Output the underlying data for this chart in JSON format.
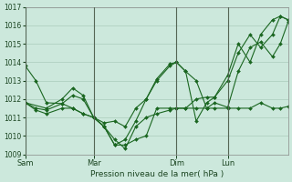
{
  "background_color": "#cce8dc",
  "grid_color": "#aaccbc",
  "line_color": "#1a6620",
  "marker_color": "#1a6620",
  "xlabel": "Pression niveau de la mer( hPa )",
  "ylim": [
    1009,
    1017
  ],
  "yticks": [
    1009,
    1010,
    1011,
    1012,
    1013,
    1014,
    1015,
    1016,
    1017
  ],
  "xtick_labels": [
    "Sam",
    "Mar",
    "Dim",
    "Lun"
  ],
  "xtick_positions": [
    0.0,
    0.26,
    0.575,
    0.77
  ],
  "vline_positions": [
    0.0,
    0.26,
    0.575,
    0.77
  ],
  "series": [
    {
      "x": [
        0.0,
        0.04,
        0.08,
        0.14,
        0.18,
        0.22,
        0.26,
        0.3,
        0.34,
        0.38,
        0.42,
        0.46,
        0.5,
        0.55,
        0.575,
        0.61,
        0.65,
        0.69,
        0.72,
        0.77,
        0.81,
        0.855,
        0.895,
        0.94,
        0.97,
        1.0
      ],
      "y": [
        1013.8,
        1013.0,
        1011.8,
        1011.75,
        1011.5,
        1011.2,
        1011.0,
        1010.5,
        1009.5,
        1009.8,
        1010.8,
        1012.0,
        1013.1,
        1013.9,
        1014.0,
        1013.5,
        1013.0,
        1011.5,
        1011.8,
        1011.55,
        1013.5,
        1014.8,
        1015.1,
        1014.3,
        1015.0,
        1016.2
      ]
    },
    {
      "x": [
        0.0,
        0.04,
        0.08,
        0.14,
        0.18,
        0.22,
        0.26,
        0.3,
        0.34,
        0.38,
        0.42,
        0.46,
        0.5,
        0.55,
        0.575,
        0.61,
        0.65,
        0.69,
        0.72,
        0.77,
        0.81,
        0.855,
        0.895,
        0.94,
        0.97,
        1.0
      ],
      "y": [
        1011.8,
        1011.5,
        1011.4,
        1011.75,
        1012.2,
        1012.0,
        1011.0,
        1010.5,
        1009.8,
        1009.3,
        1010.5,
        1011.0,
        1011.2,
        1011.4,
        1011.5,
        1011.5,
        1011.5,
        1011.5,
        1011.5,
        1011.5,
        1011.5,
        1011.5,
        1011.8,
        1011.5,
        1011.5,
        1011.6
      ]
    },
    {
      "x": [
        0.0,
        0.08,
        0.14,
        0.18,
        0.22,
        0.26,
        0.3,
        0.34,
        0.38,
        0.42,
        0.46,
        0.5,
        0.55,
        0.575,
        0.61,
        0.65,
        0.69,
        0.72,
        0.77,
        0.81,
        0.855,
        0.895,
        0.94,
        0.97,
        1.0
      ],
      "y": [
        1011.8,
        1011.5,
        1012.0,
        1012.6,
        1012.2,
        1011.0,
        1010.7,
        1010.8,
        1010.5,
        1011.5,
        1012.0,
        1013.0,
        1013.8,
        1014.0,
        1013.5,
        1010.8,
        1011.8,
        1012.1,
        1013.0,
        1014.5,
        1015.5,
        1014.8,
        1015.5,
        1016.5,
        1016.3
      ]
    },
    {
      "x": [
        0.0,
        0.04,
        0.08,
        0.14,
        0.18,
        0.22,
        0.26,
        0.3,
        0.34,
        0.38,
        0.42,
        0.46,
        0.5,
        0.55,
        0.575,
        0.61,
        0.65,
        0.69,
        0.72,
        0.77,
        0.81,
        0.855,
        0.895,
        0.94,
        0.97,
        1.0
      ],
      "y": [
        1011.8,
        1011.4,
        1011.2,
        1011.5,
        1011.5,
        1011.2,
        1011.0,
        1010.5,
        1009.5,
        1009.5,
        1009.8,
        1010.0,
        1011.5,
        1011.5,
        1011.5,
        1011.5,
        1012.0,
        1012.1,
        1012.1,
        1013.3,
        1015.0,
        1014.0,
        1015.5,
        1016.3,
        1016.5,
        1016.3
      ]
    }
  ]
}
